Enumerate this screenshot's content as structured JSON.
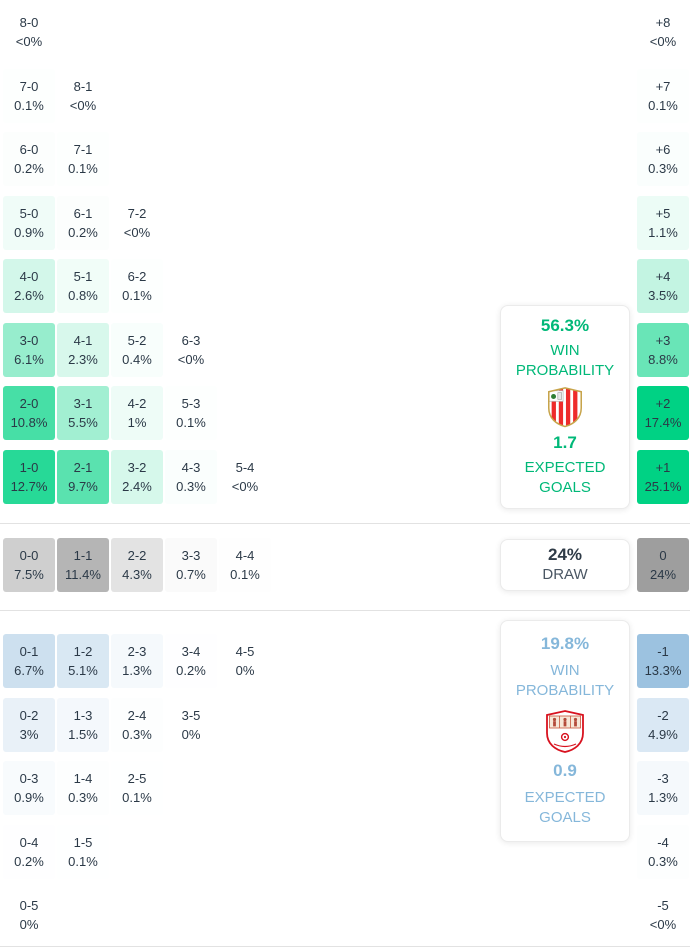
{
  "theme": {
    "home_base": "#00d284",
    "home_accent": "#00b878",
    "draw_base": "#9e9e9e",
    "draw_accent": "#4a5663",
    "away_base": "#8fbadc",
    "away_accent": "#85b7da",
    "cell_text": "#2b3947",
    "divider": "#e2e2e2"
  },
  "chart_data": {
    "type": "heatmap",
    "home_score_rows": [
      [
        {
          "score": "8-0",
          "prob": "<0%",
          "v": 0
        }
      ],
      [
        {
          "score": "7-0",
          "prob": "0.1%",
          "v": 0.1
        },
        {
          "score": "8-1",
          "prob": "<0%",
          "v": 0
        }
      ],
      [
        {
          "score": "6-0",
          "prob": "0.2%",
          "v": 0.2
        },
        {
          "score": "7-1",
          "prob": "0.1%",
          "v": 0.1
        }
      ],
      [
        {
          "score": "5-0",
          "prob": "0.9%",
          "v": 0.9
        },
        {
          "score": "6-1",
          "prob": "0.2%",
          "v": 0.2
        },
        {
          "score": "7-2",
          "prob": "<0%",
          "v": 0
        }
      ],
      [
        {
          "score": "4-0",
          "prob": "2.6%",
          "v": 2.6
        },
        {
          "score": "5-1",
          "prob": "0.8%",
          "v": 0.8
        },
        {
          "score": "6-2",
          "prob": "0.1%",
          "v": 0.1
        }
      ],
      [
        {
          "score": "3-0",
          "prob": "6.1%",
          "v": 6.1
        },
        {
          "score": "4-1",
          "prob": "2.3%",
          "v": 2.3
        },
        {
          "score": "5-2",
          "prob": "0.4%",
          "v": 0.4
        },
        {
          "score": "6-3",
          "prob": "<0%",
          "v": 0
        }
      ],
      [
        {
          "score": "2-0",
          "prob": "10.8%",
          "v": 10.8
        },
        {
          "score": "3-1",
          "prob": "5.5%",
          "v": 5.5
        },
        {
          "score": "4-2",
          "prob": "1%",
          "v": 1
        },
        {
          "score": "5-3",
          "prob": "0.1%",
          "v": 0.1
        }
      ],
      [
        {
          "score": "1-0",
          "prob": "12.7%",
          "v": 12.7
        },
        {
          "score": "2-1",
          "prob": "9.7%",
          "v": 9.7
        },
        {
          "score": "3-2",
          "prob": "2.4%",
          "v": 2.4
        },
        {
          "score": "4-3",
          "prob": "0.3%",
          "v": 0.3
        },
        {
          "score": "5-4",
          "prob": "<0%",
          "v": 0
        }
      ]
    ],
    "draw_score_row": [
      {
        "score": "0-0",
        "prob": "7.5%",
        "v": 7.5
      },
      {
        "score": "1-1",
        "prob": "11.4%",
        "v": 11.4
      },
      {
        "score": "2-2",
        "prob": "4.3%",
        "v": 4.3
      },
      {
        "score": "3-3",
        "prob": "0.7%",
        "v": 0.7
      },
      {
        "score": "4-4",
        "prob": "0.1%",
        "v": 0.1
      }
    ],
    "away_score_rows": [
      [
        {
          "score": "0-1",
          "prob": "6.7%",
          "v": 6.7
        },
        {
          "score": "1-2",
          "prob": "5.1%",
          "v": 5.1
        },
        {
          "score": "2-3",
          "prob": "1.3%",
          "v": 1.3
        },
        {
          "score": "3-4",
          "prob": "0.2%",
          "v": 0.2
        },
        {
          "score": "4-5",
          "prob": "0%",
          "v": 0
        }
      ],
      [
        {
          "score": "0-2",
          "prob": "3%",
          "v": 3
        },
        {
          "score": "1-3",
          "prob": "1.5%",
          "v": 1.5
        },
        {
          "score": "2-4",
          "prob": "0.3%",
          "v": 0.3
        },
        {
          "score": "3-5",
          "prob": "0%",
          "v": 0
        }
      ],
      [
        {
          "score": "0-3",
          "prob": "0.9%",
          "v": 0.9
        },
        {
          "score": "1-4",
          "prob": "0.3%",
          "v": 0.3
        },
        {
          "score": "2-5",
          "prob": "0.1%",
          "v": 0.1
        }
      ],
      [
        {
          "score": "0-4",
          "prob": "0.2%",
          "v": 0.2
        },
        {
          "score": "1-5",
          "prob": "0.1%",
          "v": 0.1
        }
      ],
      [
        {
          "score": "0-5",
          "prob": "0%",
          "v": 0
        }
      ]
    ],
    "home_margin_column": [
      {
        "score": "+8",
        "prob": "<0%",
        "v": 0
      },
      {
        "score": "+7",
        "prob": "0.1%",
        "v": 0.1
      },
      {
        "score": "+6",
        "prob": "0.3%",
        "v": 0.3
      },
      {
        "score": "+5",
        "prob": "1.1%",
        "v": 1.1
      },
      {
        "score": "+4",
        "prob": "3.5%",
        "v": 3.5
      },
      {
        "score": "+3",
        "prob": "8.8%",
        "v": 8.8
      },
      {
        "score": "+2",
        "prob": "17.4%",
        "v": 17.4
      },
      {
        "score": "+1",
        "prob": "25.1%",
        "v": 25.1
      }
    ],
    "draw_margin_cell": {
      "score": "0",
      "prob": "24%",
      "v": 24
    },
    "away_margin_column": [
      {
        "score": "-1",
        "prob": "13.3%",
        "v": 13.3
      },
      {
        "score": "-2",
        "prob": "4.9%",
        "v": 4.9
      },
      {
        "score": "-3",
        "prob": "1.3%",
        "v": 1.3
      },
      {
        "score": "-4",
        "prob": "0.3%",
        "v": 0.3
      },
      {
        "score": "-5",
        "prob": "<0%",
        "v": 0
      }
    ],
    "summary": {
      "home": {
        "win_probability": "56.3%",
        "win_probability_label": "WIN PROBABILITY",
        "expected_goals": "1.7",
        "expected_goals_label": "EXPECTED GOALS",
        "badge_icon": "athletic-club-crest-icon"
      },
      "draw": {
        "probability": "24%",
        "label": "DRAW"
      },
      "away": {
        "win_probability": "19.8%",
        "win_probability_label": "WIN PROBABILITY",
        "expected_goals": "0.9",
        "expected_goals_label": "EXPECTED GOALS",
        "badge_icon": "sevilla-crest-icon"
      }
    }
  }
}
